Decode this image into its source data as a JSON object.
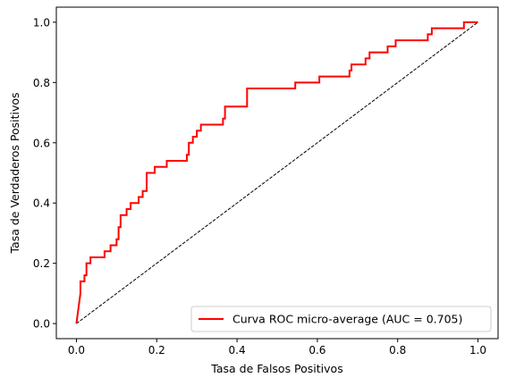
{
  "chart_data": {
    "type": "line",
    "title": "",
    "xlabel": "Tasa de Falsos Positivos",
    "ylabel": "Tasa de Verdaderos Positivos",
    "xlim": [
      -0.05,
      1.05
    ],
    "ylim": [
      -0.05,
      1.05
    ],
    "xticks": [
      "0.0",
      "0.2",
      "0.4",
      "0.6",
      "0.8",
      "1.0"
    ],
    "yticks": [
      "0.0",
      "0.2",
      "0.4",
      "0.6",
      "0.8",
      "1.0"
    ],
    "grid": false,
    "legend_position": "lower right",
    "series": [
      {
        "name": "Curva ROC micro-average (AUC = 0.705)",
        "color": "#ff0000",
        "style": "solid",
        "points": [
          [
            0.0,
            0.0
          ],
          [
            0.01,
            0.1
          ],
          [
            0.01,
            0.14
          ],
          [
            0.02,
            0.14
          ],
          [
            0.02,
            0.16
          ],
          [
            0.025,
            0.16
          ],
          [
            0.025,
            0.2
          ],
          [
            0.035,
            0.2
          ],
          [
            0.035,
            0.22
          ],
          [
            0.07,
            0.22
          ],
          [
            0.07,
            0.24
          ],
          [
            0.085,
            0.24
          ],
          [
            0.085,
            0.26
          ],
          [
            0.1,
            0.26
          ],
          [
            0.1,
            0.28
          ],
          [
            0.105,
            0.28
          ],
          [
            0.105,
            0.32
          ],
          [
            0.11,
            0.32
          ],
          [
            0.11,
            0.36
          ],
          [
            0.125,
            0.36
          ],
          [
            0.125,
            0.38
          ],
          [
            0.135,
            0.38
          ],
          [
            0.135,
            0.4
          ],
          [
            0.155,
            0.4
          ],
          [
            0.155,
            0.42
          ],
          [
            0.165,
            0.42
          ],
          [
            0.165,
            0.44
          ],
          [
            0.175,
            0.44
          ],
          [
            0.175,
            0.5
          ],
          [
            0.195,
            0.5
          ],
          [
            0.195,
            0.52
          ],
          [
            0.225,
            0.52
          ],
          [
            0.225,
            0.54
          ],
          [
            0.275,
            0.54
          ],
          [
            0.275,
            0.56
          ],
          [
            0.28,
            0.56
          ],
          [
            0.28,
            0.6
          ],
          [
            0.29,
            0.6
          ],
          [
            0.29,
            0.62
          ],
          [
            0.3,
            0.62
          ],
          [
            0.3,
            0.64
          ],
          [
            0.31,
            0.64
          ],
          [
            0.31,
            0.66
          ],
          [
            0.365,
            0.66
          ],
          [
            0.365,
            0.68
          ],
          [
            0.37,
            0.68
          ],
          [
            0.37,
            0.72
          ],
          [
            0.425,
            0.72
          ],
          [
            0.425,
            0.78
          ],
          [
            0.545,
            0.78
          ],
          [
            0.545,
            0.8
          ],
          [
            0.605,
            0.8
          ],
          [
            0.605,
            0.82
          ],
          [
            0.68,
            0.82
          ],
          [
            0.68,
            0.84
          ],
          [
            0.685,
            0.84
          ],
          [
            0.685,
            0.86
          ],
          [
            0.72,
            0.86
          ],
          [
            0.72,
            0.88
          ],
          [
            0.73,
            0.88
          ],
          [
            0.73,
            0.9
          ],
          [
            0.775,
            0.9
          ],
          [
            0.775,
            0.92
          ],
          [
            0.795,
            0.92
          ],
          [
            0.795,
            0.94
          ],
          [
            0.875,
            0.94
          ],
          [
            0.875,
            0.96
          ],
          [
            0.885,
            0.96
          ],
          [
            0.885,
            0.98
          ],
          [
            0.965,
            0.98
          ],
          [
            0.965,
            1.0
          ],
          [
            1.0,
            1.0
          ]
        ]
      },
      {
        "name": "",
        "color": "#000000",
        "style": "dashed",
        "points": [
          [
            0.0,
            0.0
          ],
          [
            1.0,
            1.0
          ]
        ]
      }
    ]
  }
}
